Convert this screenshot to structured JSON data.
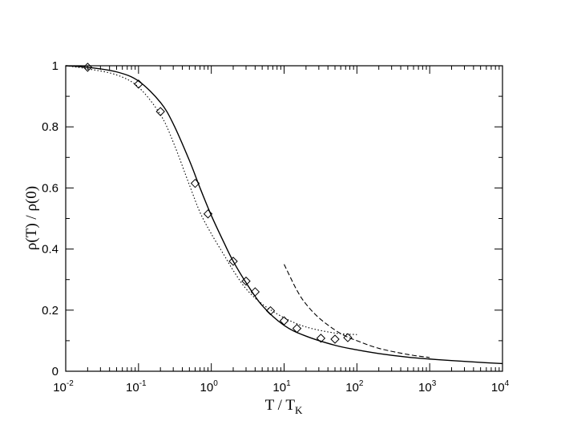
{
  "chart_data": {
    "type": "scatter",
    "title": "",
    "xlabel": {
      "main": "T / T",
      "sub": "K"
    },
    "ylabel": "ρ(T) / ρ(0)",
    "x_scale": "log",
    "xlim": [
      0.01,
      10000
    ],
    "ylim": [
      0,
      1
    ],
    "grid": false,
    "legend": "none",
    "x_ticks": [
      {
        "base": "10",
        "exp": "-2"
      },
      {
        "base": "10",
        "exp": "-1"
      },
      {
        "base": "10",
        "exp": "0"
      },
      {
        "base": "10",
        "exp": "1"
      },
      {
        "base": "10",
        "exp": "2"
      },
      {
        "base": "10",
        "exp": "3"
      },
      {
        "base": "10",
        "exp": "4"
      }
    ],
    "y_ticks": [
      "0",
      "0.2",
      "0.4",
      "0.6",
      "0.8",
      "1"
    ],
    "series": [
      {
        "style": "solid-line",
        "x": [
          0.01,
          0.02,
          0.05,
          0.1,
          0.2,
          0.3,
          0.5,
          0.7,
          1,
          1.5,
          2,
          3,
          5,
          10,
          20,
          50,
          100,
          200,
          500,
          1000,
          2000,
          5000,
          10000
        ],
        "y": [
          1.0,
          0.995,
          0.98,
          0.95,
          0.88,
          0.81,
          0.69,
          0.6,
          0.51,
          0.42,
          0.36,
          0.29,
          0.215,
          0.15,
          0.115,
          0.085,
          0.07,
          0.058,
          0.046,
          0.04,
          0.035,
          0.029,
          0.025
        ]
      },
      {
        "style": "dotted-line",
        "x": [
          0.01,
          0.02,
          0.05,
          0.1,
          0.2,
          0.3,
          0.5,
          0.7,
          1,
          1.5,
          2,
          3,
          5,
          10,
          20,
          50,
          100
        ],
        "y": [
          1.0,
          0.99,
          0.97,
          0.93,
          0.84,
          0.75,
          0.61,
          0.52,
          0.45,
          0.38,
          0.33,
          0.27,
          0.22,
          0.175,
          0.145,
          0.125,
          0.12
        ]
      },
      {
        "style": "dashed-line",
        "x": [
          10,
          15,
          20,
          30,
          50,
          70,
          100,
          200,
          500,
          1000
        ],
        "y": [
          0.35,
          0.265,
          0.22,
          0.175,
          0.135,
          0.115,
          0.1,
          0.075,
          0.055,
          0.045
        ]
      },
      {
        "style": "diamond-markers",
        "x": [
          0.02,
          0.1,
          0.2,
          0.6,
          0.9,
          2,
          3,
          4,
          6.5,
          10,
          15,
          32,
          50,
          75
        ],
        "y": [
          0.995,
          0.94,
          0.85,
          0.615,
          0.515,
          0.36,
          0.295,
          0.26,
          0.198,
          0.165,
          0.14,
          0.108,
          0.105,
          0.11
        ]
      }
    ]
  }
}
